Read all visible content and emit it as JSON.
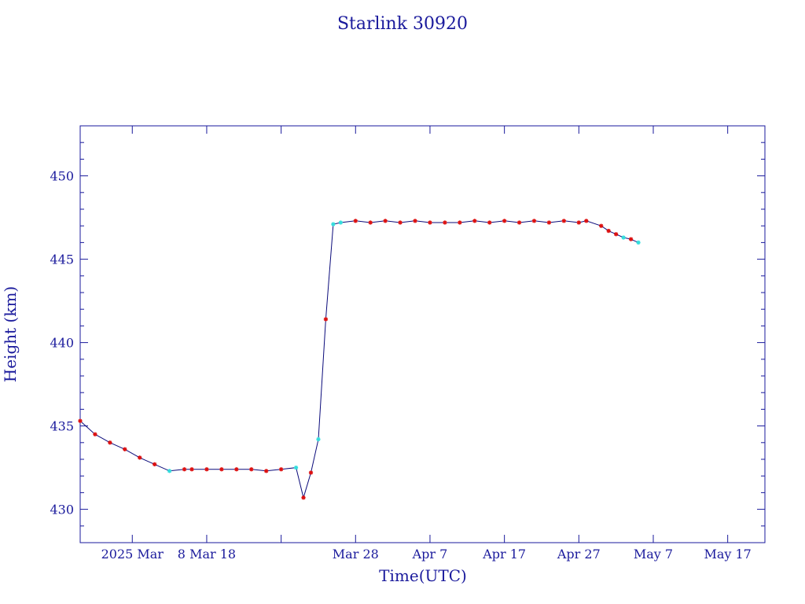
{
  "chart_data": {
    "type": "line",
    "title": "Starlink 30920",
    "xlabel": "Time(UTC)",
    "ylabel": "Height (km)",
    "xlim": [
      "2025-02-19",
      "2025-05-22"
    ],
    "ylim": [
      428,
      453
    ],
    "x_ticks": [
      {
        "date": "2025-02-26",
        "label": "2025 Mar"
      },
      {
        "date": "2025-03-08",
        "label": "8 Mar 18"
      },
      {
        "date": "2025-03-18",
        "label": ""
      },
      {
        "date": "2025-03-28",
        "label": "Mar 28"
      },
      {
        "date": "2025-04-07",
        "label": "Apr  7"
      },
      {
        "date": "2025-04-17",
        "label": "Apr 17"
      },
      {
        "date": "2025-04-27",
        "label": "Apr 27"
      },
      {
        "date": "2025-05-07",
        "label": "May  7"
      },
      {
        "date": "2025-05-17",
        "label": "May 17"
      }
    ],
    "y_ticks": [
      {
        "value": 430,
        "label": "430"
      },
      {
        "value": 435,
        "label": "435"
      },
      {
        "value": 440,
        "label": "440"
      },
      {
        "value": 445,
        "label": "445"
      },
      {
        "value": 450,
        "label": "450"
      }
    ],
    "grid": false,
    "colors": {
      "axes": "#1a1a9c",
      "line": "#0a0a7a",
      "marker_red": "#dd1111",
      "marker_cyan": "#33dddd"
    },
    "series": [
      {
        "marker": "mixed",
        "x": [
          "2025-02-19",
          "2025-02-21",
          "2025-02-23",
          "2025-02-25",
          "2025-02-27",
          "2025-03-01",
          "2025-03-03",
          "2025-03-05",
          "2025-03-06",
          "2025-03-08",
          "2025-03-10",
          "2025-03-12",
          "2025-03-14",
          "2025-03-16",
          "2025-03-18",
          "2025-03-20",
          "2025-03-21",
          "2025-03-22",
          "2025-03-23",
          "2025-03-24",
          "2025-03-25",
          "2025-03-26",
          "2025-03-28",
          "2025-03-30",
          "2025-04-01",
          "2025-04-03",
          "2025-04-05",
          "2025-04-07",
          "2025-04-09",
          "2025-04-11",
          "2025-04-13",
          "2025-04-15",
          "2025-04-17",
          "2025-04-19",
          "2025-04-21",
          "2025-04-23",
          "2025-04-25",
          "2025-04-27",
          "2025-04-28",
          "2025-04-30",
          "2025-05-01",
          "2025-05-02",
          "2025-05-03",
          "2025-05-04",
          "2025-05-05"
        ],
        "y": [
          435.3,
          434.5,
          434.0,
          433.6,
          433.1,
          432.7,
          432.3,
          432.4,
          432.4,
          432.4,
          432.4,
          432.4,
          432.4,
          432.3,
          432.4,
          432.5,
          430.7,
          432.2,
          434.2,
          441.4,
          447.1,
          447.2,
          447.3,
          447.2,
          447.3,
          447.2,
          447.3,
          447.2,
          447.2,
          447.2,
          447.3,
          447.2,
          447.3,
          447.2,
          447.3,
          447.2,
          447.3,
          447.2,
          447.3,
          447.0,
          446.7,
          446.5,
          446.3,
          446.2,
          446.0
        ],
        "markers": [
          "red",
          "red",
          "red",
          "red",
          "red",
          "red",
          "cyan",
          "red",
          "red",
          "red",
          "red",
          "red",
          "red",
          "red",
          "red",
          "cyan",
          "red",
          "red",
          "cyan",
          "red",
          "cyan",
          "cyan",
          "red",
          "red",
          "red",
          "red",
          "red",
          "red",
          "red",
          "red",
          "red",
          "red",
          "red",
          "red",
          "red",
          "red",
          "red",
          "red",
          "red",
          "red",
          "red",
          "red",
          "cyan",
          "red",
          "cyan"
        ]
      }
    ]
  }
}
